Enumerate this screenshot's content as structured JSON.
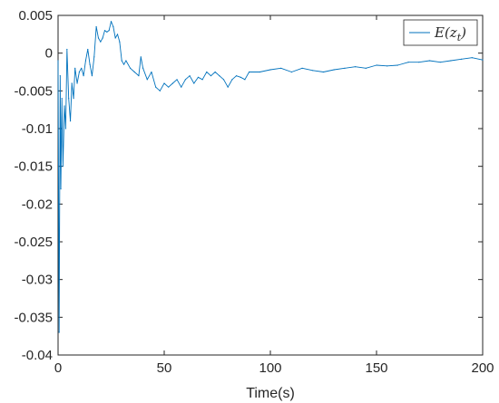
{
  "chart_data": {
    "type": "line",
    "title": "",
    "xlabel": "Time(s)",
    "ylabel": "",
    "xlim": [
      0,
      200
    ],
    "ylim": [
      -0.04,
      0.005
    ],
    "x_ticks": [
      0,
      50,
      100,
      150,
      200
    ],
    "x_tick_labels": [
      "0",
      "50",
      "100",
      "150",
      "200"
    ],
    "y_ticks": [
      -0.04,
      -0.035,
      -0.03,
      -0.025,
      -0.02,
      -0.015,
      -0.01,
      -0.005,
      0,
      0.005
    ],
    "y_tick_labels": [
      "-0.04",
      "-0.035",
      "-0.03",
      "-0.025",
      "-0.02",
      "-0.015",
      "-0.01",
      "-0.005",
      "0",
      "0.005"
    ],
    "grid": false,
    "legend_position": "top-right",
    "series": [
      {
        "name": "E(z_t)",
        "color": "#0072bd",
        "x": [
          0,
          0.5,
          1,
          1.3,
          1.8,
          2.3,
          3,
          3.6,
          4.2,
          5,
          5.8,
          6.5,
          7.3,
          8,
          9,
          10,
          11,
          12,
          13,
          14,
          15,
          16,
          17,
          18,
          19,
          20,
          21,
          22,
          23,
          24,
          25,
          26,
          27,
          28,
          29,
          30,
          31,
          32,
          34,
          36,
          38,
          39,
          40,
          42,
          44,
          46,
          48,
          50,
          52,
          54,
          56,
          58,
          60,
          62,
          64,
          66,
          68,
          70,
          72,
          74,
          76,
          78,
          80,
          82,
          84,
          86,
          88,
          90,
          95,
          100,
          105,
          110,
          115,
          120,
          125,
          130,
          135,
          140,
          145,
          150,
          155,
          160,
          165,
          170,
          175,
          180,
          185,
          190,
          195,
          200
        ],
        "y": [
          -0.001,
          -0.037,
          -0.003,
          -0.018,
          -0.006,
          -0.015,
          -0.007,
          -0.01,
          0.0005,
          -0.006,
          -0.009,
          -0.004,
          -0.006,
          -0.002,
          -0.004,
          -0.0025,
          -0.002,
          -0.003,
          -0.001,
          0.0005,
          -0.0015,
          -0.003,
          -0.0005,
          0.0035,
          0.002,
          0.0015,
          0.002,
          0.003,
          0.0028,
          0.003,
          0.0042,
          0.0035,
          0.002,
          0.0025,
          0.0015,
          -0.001,
          -0.0015,
          -0.001,
          -0.002,
          -0.0025,
          -0.003,
          -0.0005,
          -0.002,
          -0.0035,
          -0.0025,
          -0.0045,
          -0.005,
          -0.004,
          -0.0045,
          -0.004,
          -0.0035,
          -0.0045,
          -0.0035,
          -0.003,
          -0.004,
          -0.0032,
          -0.0035,
          -0.0025,
          -0.003,
          -0.0025,
          -0.003,
          -0.0035,
          -0.0045,
          -0.0035,
          -0.003,
          -0.0032,
          -0.0035,
          -0.0025,
          -0.0025,
          -0.0022,
          -0.002,
          -0.0025,
          -0.002,
          -0.0023,
          -0.0025,
          -0.0022,
          -0.002,
          -0.0018,
          -0.002,
          -0.0016,
          -0.0017,
          -0.0016,
          -0.0012,
          -0.0012,
          -0.001,
          -0.0012,
          -0.001,
          -0.0008,
          -0.0006,
          -0.0009
        ]
      }
    ]
  }
}
